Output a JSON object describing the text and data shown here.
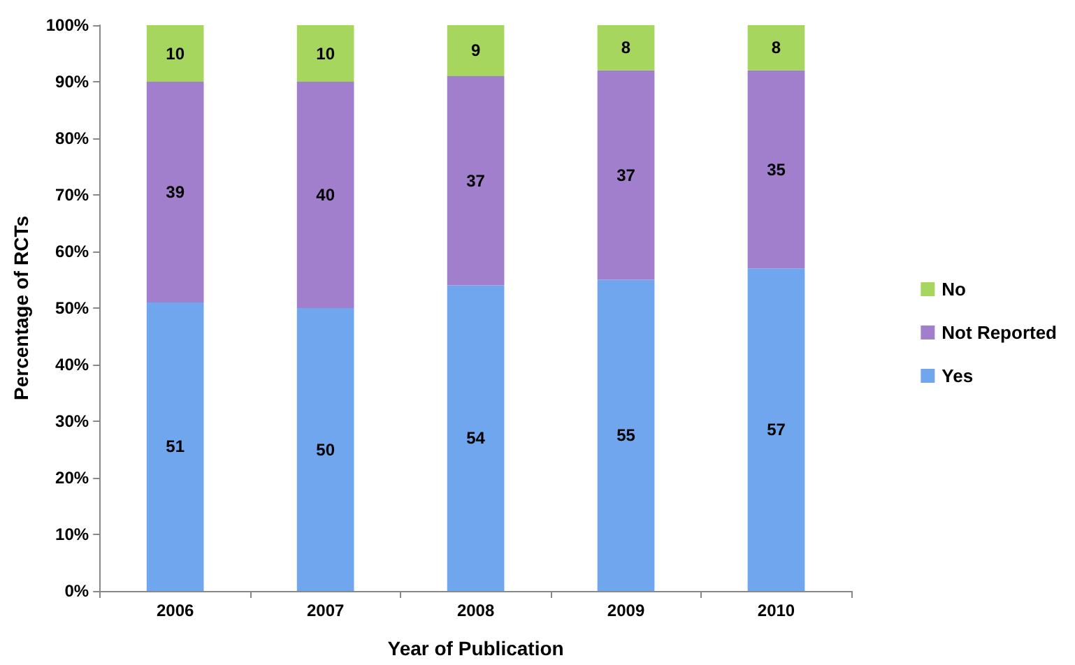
{
  "chart_data": {
    "type": "bar",
    "stacked": true,
    "xlabel": "Year of Publication",
    "ylabel": "Percentage of RCTs",
    "categories": [
      "2006",
      "2007",
      "2008",
      "2009",
      "2010"
    ],
    "series": [
      {
        "name": "Yes",
        "color": "#6fa6ee",
        "values": [
          51,
          50,
          54,
          55,
          57
        ]
      },
      {
        "name": "Not Reported",
        "color": "#a27fcc",
        "values": [
          39,
          40,
          37,
          37,
          35
        ]
      },
      {
        "name": "No",
        "color": "#a6d65e",
        "values": [
          10,
          10,
          9,
          8,
          8
        ]
      }
    ],
    "ylim": [
      0,
      100
    ],
    "yticks": [
      {
        "value": 0,
        "label": "0%"
      },
      {
        "value": 10,
        "label": "10%"
      },
      {
        "value": 20,
        "label": "20%"
      },
      {
        "value": 30,
        "label": "30%"
      },
      {
        "value": 40,
        "label": "40%"
      },
      {
        "value": 50,
        "label": "50%"
      },
      {
        "value": 60,
        "label": "60%"
      },
      {
        "value": 70,
        "label": "70%"
      },
      {
        "value": 80,
        "label": "80%"
      },
      {
        "value": 90,
        "label": "90%"
      },
      {
        "value": 100,
        "label": "100%"
      }
    ],
    "data_labels": true,
    "grid": false,
    "legend": "right"
  }
}
